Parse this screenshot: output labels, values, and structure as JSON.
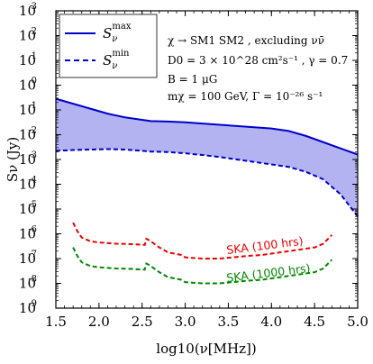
{
  "chart_data": {
    "type": "area",
    "title": "",
    "xlabel": "log10(ν[MHz])",
    "ylabel": "Sν (Jy)",
    "xlim": [
      1.5,
      5.0
    ],
    "ylim_log10": [
      -9,
      3
    ],
    "yscale": "log",
    "x_ticks": [
      "1.5",
      "2.0",
      "2.5",
      "3.0",
      "3.5",
      "4.0",
      "4.5",
      "5.0"
    ],
    "y_tick_exponents": [
      "3",
      "2",
      "1",
      "0",
      "-1",
      "-2",
      "-3",
      "-4",
      "-5",
      "-6",
      "-7",
      "-8",
      "-9"
    ],
    "y_tick_base": "10",
    "grid": false,
    "legend_position": "top-left",
    "legend": [
      {
        "label": "S",
        "sub": "ν",
        "sup": "max",
        "style": "solid",
        "color": "#0000cc"
      },
      {
        "label": "S",
        "sub": "ν",
        "sup": "min",
        "style": "dashed",
        "color": "#0000cc"
      }
    ],
    "annotations": {
      "line1": "χ → SM1 SM2 , excluding νν̄",
      "line2": "D0 = 3 × 10^28 cm²s⁻¹ , γ = 0.7",
      "line3": "B = 1 μG",
      "line4": "mχ = 100 GeV, Γ = 10⁻²⁶ s⁻¹"
    },
    "fill_color": "#b3b3f2",
    "series": [
      {
        "name": "Sν max",
        "style": "solid",
        "color": "#0000cc",
        "x": [
          1.5,
          1.7,
          1.9,
          2.1,
          2.3,
          2.5,
          2.6,
          2.8,
          3.0,
          3.2,
          3.4,
          3.6,
          3.8,
          4.0,
          4.2,
          4.4,
          4.6,
          4.8,
          5.0
        ],
        "log10_y": [
          -0.55,
          -0.75,
          -0.95,
          -1.15,
          -1.3,
          -1.4,
          -1.45,
          -1.47,
          -1.5,
          -1.55,
          -1.6,
          -1.65,
          -1.7,
          -1.75,
          -1.85,
          -2.05,
          -2.3,
          -2.55,
          -2.8
        ]
      },
      {
        "name": "Sν min",
        "style": "dashed",
        "color": "#0000cc",
        "x": [
          1.5,
          1.7,
          1.9,
          2.1,
          2.3,
          2.5,
          2.6,
          2.8,
          3.0,
          3.2,
          3.4,
          3.6,
          3.8,
          4.0,
          4.2,
          4.4,
          4.6,
          4.8,
          5.0
        ],
        "log10_y": [
          -2.65,
          -2.62,
          -2.6,
          -2.58,
          -2.6,
          -2.65,
          -2.68,
          -2.7,
          -2.75,
          -2.82,
          -2.9,
          -3.0,
          -3.1,
          -3.2,
          -3.3,
          -3.5,
          -3.8,
          -4.4,
          -5.3
        ]
      },
      {
        "name": "SKA (100 hrs)",
        "style": "dashed",
        "color": "#ee0000",
        "x": [
          1.7,
          1.75,
          1.8,
          1.9,
          2.0,
          2.2,
          2.4,
          2.53,
          2.55,
          2.6,
          2.7,
          2.8,
          2.95,
          3.0,
          3.2,
          3.4,
          3.55,
          3.7,
          3.9,
          4.1,
          4.3,
          4.5,
          4.6,
          4.7
        ],
        "log10_y": [
          -5.55,
          -5.9,
          -6.15,
          -6.3,
          -6.35,
          -6.4,
          -6.42,
          -6.45,
          -6.2,
          -6.3,
          -6.55,
          -6.75,
          -6.85,
          -6.95,
          -7.0,
          -7.0,
          -6.95,
          -6.9,
          -6.85,
          -6.75,
          -6.65,
          -6.55,
          -6.4,
          -6.05
        ]
      },
      {
        "name": "SKA (1000 hrs)",
        "style": "dashed",
        "color": "#008800",
        "x": [
          1.7,
          1.75,
          1.8,
          1.9,
          2.0,
          2.2,
          2.4,
          2.53,
          2.55,
          2.6,
          2.7,
          2.8,
          2.95,
          3.0,
          3.2,
          3.4,
          3.55,
          3.7,
          3.9,
          4.1,
          4.3,
          4.5,
          4.6,
          4.7
        ],
        "log10_y": [
          -6.55,
          -6.9,
          -7.15,
          -7.3,
          -7.35,
          -7.4,
          -7.42,
          -7.45,
          -7.2,
          -7.3,
          -7.55,
          -7.75,
          -7.85,
          -7.95,
          -8.0,
          -8.0,
          -7.95,
          -7.9,
          -7.85,
          -7.75,
          -7.65,
          -7.55,
          -7.4,
          -7.05
        ]
      }
    ]
  }
}
